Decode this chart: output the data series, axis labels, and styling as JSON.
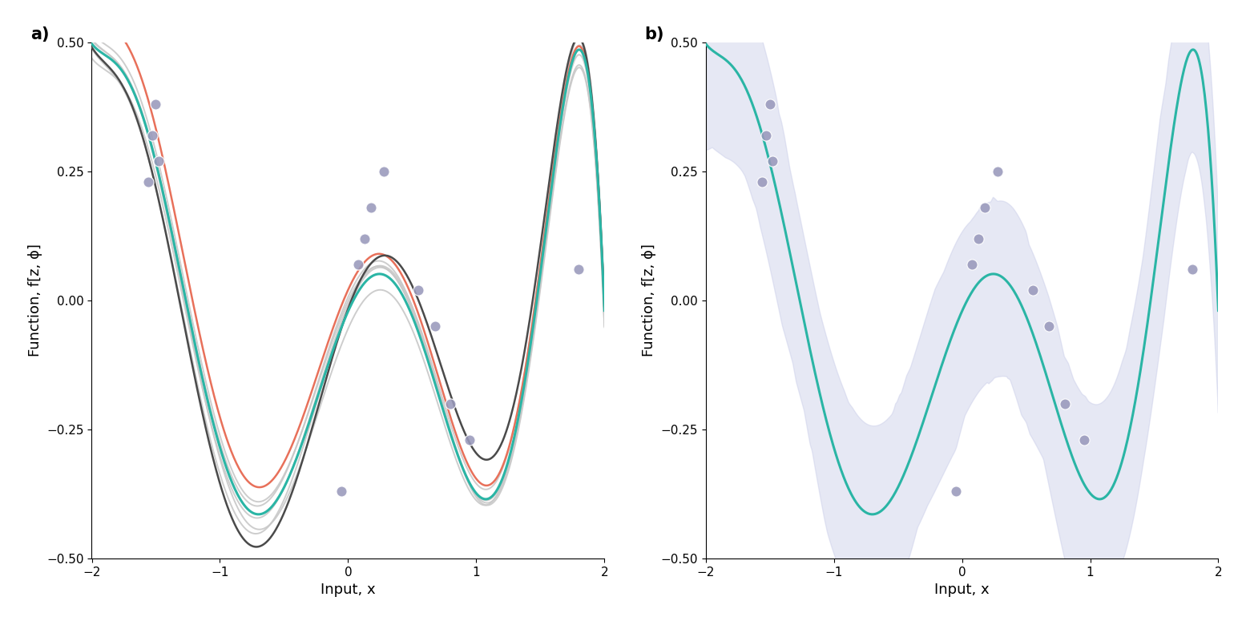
{
  "xlim": [
    -2.0,
    2.0
  ],
  "ylim": [
    -0.5,
    0.5
  ],
  "xlabel": "Input, x",
  "ylabel": "Function, f[z, ϕ]",
  "teal_color": "#2ab5a5",
  "red_color": "#e8705a",
  "dark_gray_color": "#4a4a4a",
  "light_gray_color": "#c0c0c0",
  "dot_color": "#9999bb",
  "shade_color": "#c8cce8",
  "panel_a_label": "a)",
  "panel_b_label": "b)",
  "data_x": [
    -1.5,
    -1.53,
    -1.48,
    -1.56,
    -0.05,
    0.08,
    0.13,
    0.18,
    0.28,
    0.55,
    0.68,
    0.8,
    0.95,
    1.8
  ],
  "data_y": [
    0.38,
    0.32,
    0.27,
    0.23,
    -0.37,
    0.07,
    0.12,
    0.18,
    0.25,
    0.02,
    -0.05,
    -0.2,
    -0.27,
    0.06
  ],
  "xticks": [
    -2.0,
    -1.0,
    0.0,
    1.0,
    2.0
  ],
  "yticks": [
    -0.5,
    -0.25,
    0.0,
    0.25,
    0.5
  ]
}
